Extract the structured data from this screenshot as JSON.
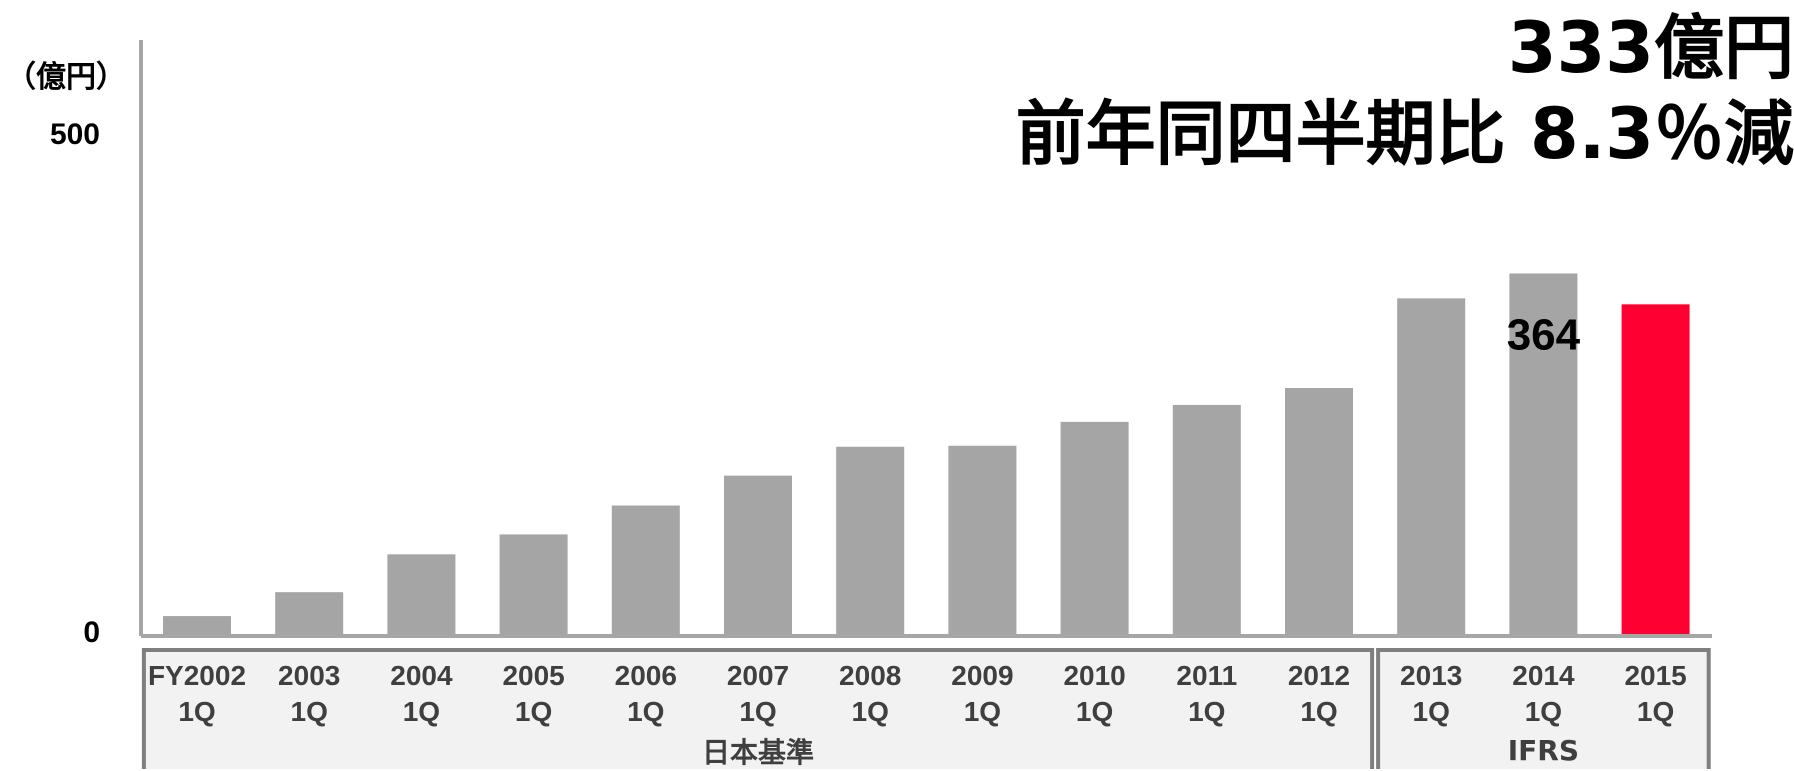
{
  "headline": {
    "amount": "333億円",
    "change": "前年同四半期比 8.3％減"
  },
  "colors": {
    "bar": "#a5a5a5",
    "highlight": "#ff0033",
    "axis": "#a6a6a6",
    "group_box": "#7f7f7f",
    "group_fill": "#f2f2f2"
  },
  "chart_data": {
    "type": "bar",
    "title": "",
    "xlabel": "",
    "ylabel": "（億円）",
    "ylim": [
      0,
      500
    ],
    "yticks": [
      "0",
      "500"
    ],
    "categories": [
      [
        "FY2002",
        "1Q"
      ],
      [
        "2003",
        "1Q"
      ],
      [
        "2004",
        "1Q"
      ],
      [
        "2005",
        "1Q"
      ],
      [
        "2006",
        "1Q"
      ],
      [
        "2007",
        "1Q"
      ],
      [
        "2008",
        "1Q"
      ],
      [
        "2009",
        "1Q"
      ],
      [
        "2010",
        "1Q"
      ],
      [
        "2011",
        "1Q"
      ],
      [
        "2012",
        "1Q"
      ],
      [
        "2013",
        "1Q"
      ],
      [
        "2014",
        "1Q"
      ],
      [
        "2015",
        "1Q"
      ]
    ],
    "values": [
      20,
      44,
      82,
      102,
      131,
      161,
      190,
      191,
      215,
      232,
      249,
      339,
      364,
      333
    ],
    "highlight_index": 13,
    "data_labels": [
      {
        "index": 12,
        "text": "364"
      }
    ],
    "groups": [
      {
        "label": "日本基準",
        "start": 0,
        "end": 10
      },
      {
        "label": "IFRS",
        "start": 11,
        "end": 13
      }
    ],
    "grid": false,
    "legend": "none"
  }
}
